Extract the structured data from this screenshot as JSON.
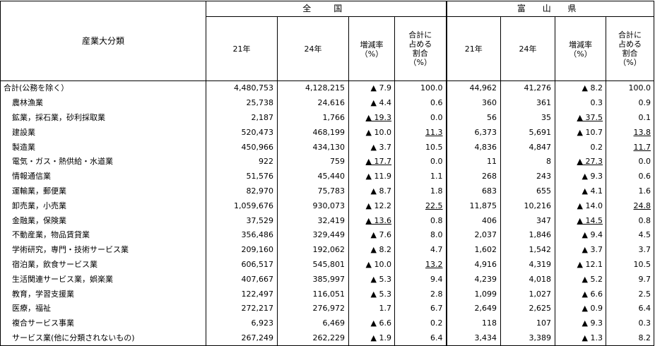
{
  "header": {
    "category_label": "産業大分類",
    "groups": [
      "全　国",
      "富 山 県"
    ],
    "col_year1": "21年",
    "col_year2": "24年",
    "col_rate": "増減率\n（%）",
    "col_share": "合計に\n占める\n割合\n（%）"
  },
  "rows": [
    {
      "name": "合計(公務を除く）",
      "indent": false,
      "n21": "4,480,753",
      "n24": "4,128,215",
      "nr": "▲ 7.9",
      "nr_u": false,
      "ns": "100.0",
      "ns_u": false,
      "t21": "44,962",
      "t24": "41,276",
      "tr": "▲ 8.2",
      "tr_u": false,
      "ts": "100.0",
      "ts_u": false
    },
    {
      "name": "農林漁業",
      "indent": true,
      "n21": "25,738",
      "n24": "24,616",
      "nr": "▲ 4.4",
      "nr_u": false,
      "ns": "0.6",
      "ns_u": false,
      "t21": "360",
      "t24": "361",
      "tr": "0.3",
      "tr_u": false,
      "ts": "0.9",
      "ts_u": false
    },
    {
      "name": "鉱業，採石業，砂利採取業",
      "indent": true,
      "n21": "2,187",
      "n24": "1,766",
      "nr": "▲ 19.3",
      "nr_u": true,
      "ns": "0.0",
      "ns_u": false,
      "t21": "56",
      "t24": "35",
      "tr": "▲ 37.5",
      "tr_u": true,
      "ts": "0.1",
      "ts_u": false
    },
    {
      "name": "建設業",
      "indent": true,
      "n21": "520,473",
      "n24": "468,199",
      "nr": "▲ 10.0",
      "nr_u": false,
      "ns": "11.3",
      "ns_u": true,
      "t21": "6,373",
      "t24": "5,691",
      "tr": "▲ 10.7",
      "tr_u": false,
      "ts": "13.8",
      "ts_u": true
    },
    {
      "name": "製造業",
      "indent": true,
      "n21": "450,966",
      "n24": "434,130",
      "nr": "▲ 3.7",
      "nr_u": false,
      "ns": "10.5",
      "ns_u": false,
      "t21": "4,836",
      "t24": "4,847",
      "tr": "0.2",
      "tr_u": false,
      "ts": "11.7",
      "ts_u": true
    },
    {
      "name": "電気・ガス・熱供給・水道業",
      "indent": true,
      "n21": "922",
      "n24": "759",
      "nr": "▲ 17.7",
      "nr_u": true,
      "ns": "0.0",
      "ns_u": false,
      "t21": "11",
      "t24": "8",
      "tr": "▲ 27.3",
      "tr_u": true,
      "ts": "0.0",
      "ts_u": false
    },
    {
      "name": "情報通信業",
      "indent": true,
      "n21": "51,576",
      "n24": "45,440",
      "nr": "▲ 11.9",
      "nr_u": false,
      "ns": "1.1",
      "ns_u": false,
      "t21": "268",
      "t24": "243",
      "tr": "▲ 9.3",
      "tr_u": false,
      "ts": "0.6",
      "ts_u": false
    },
    {
      "name": "運輸業，郵便業",
      "indent": true,
      "n21": "82,970",
      "n24": "75,783",
      "nr": "▲ 8.7",
      "nr_u": false,
      "ns": "1.8",
      "ns_u": false,
      "t21": "683",
      "t24": "655",
      "tr": "▲ 4.1",
      "tr_u": false,
      "ts": "1.6",
      "ts_u": false
    },
    {
      "name": "卸売業，小売業",
      "indent": true,
      "n21": "1,059,676",
      "n24": "930,073",
      "nr": "▲ 12.2",
      "nr_u": false,
      "ns": "22.5",
      "ns_u": true,
      "t21": "11,875",
      "t24": "10,216",
      "tr": "▲ 14.0",
      "tr_u": false,
      "ts": "24.8",
      "ts_u": true
    },
    {
      "name": "金融業，保険業",
      "indent": true,
      "n21": "37,529",
      "n24": "32,419",
      "nr": "▲ 13.6",
      "nr_u": true,
      "ns": "0.8",
      "ns_u": false,
      "t21": "406",
      "t24": "347",
      "tr": "▲ 14.5",
      "tr_u": true,
      "ts": "0.8",
      "ts_u": false
    },
    {
      "name": "不動産業，物品賃貸業",
      "indent": true,
      "n21": "356,486",
      "n24": "329,449",
      "nr": "▲ 7.6",
      "nr_u": false,
      "ns": "8.0",
      "ns_u": false,
      "t21": "2,037",
      "t24": "1,846",
      "tr": "▲ 9.4",
      "tr_u": false,
      "ts": "4.5",
      "ts_u": false
    },
    {
      "name": "学術研究，専門・技術サービス業",
      "indent": true,
      "n21": "209,160",
      "n24": "192,062",
      "nr": "▲ 8.2",
      "nr_u": false,
      "ns": "4.7",
      "ns_u": false,
      "t21": "1,602",
      "t24": "1,542",
      "tr": "▲ 3.7",
      "tr_u": false,
      "ts": "3.7",
      "ts_u": false
    },
    {
      "name": "宿泊業，飲食サービス業",
      "indent": true,
      "n21": "606,517",
      "n24": "545,801",
      "nr": "▲ 10.0",
      "nr_u": false,
      "ns": "13.2",
      "ns_u": true,
      "t21": "4,916",
      "t24": "4,319",
      "tr": "▲ 12.1",
      "tr_u": false,
      "ts": "10.5",
      "ts_u": false
    },
    {
      "name": "生活関連サービス業，娯楽業",
      "indent": true,
      "n21": "407,667",
      "n24": "385,997",
      "nr": "▲ 5.3",
      "nr_u": false,
      "ns": "9.4",
      "ns_u": false,
      "t21": "4,239",
      "t24": "4,018",
      "tr": "▲ 5.2",
      "tr_u": false,
      "ts": "9.7",
      "ts_u": false
    },
    {
      "name": "教育，学習支援業",
      "indent": true,
      "n21": "122,497",
      "n24": "116,051",
      "nr": "▲ 5.3",
      "nr_u": false,
      "ns": "2.8",
      "ns_u": false,
      "t21": "1,099",
      "t24": "1,027",
      "tr": "▲ 6.6",
      "tr_u": false,
      "ts": "2.5",
      "ts_u": false
    },
    {
      "name": "医療，福祉",
      "indent": true,
      "n21": "272,217",
      "n24": "276,972",
      "nr": "1.7",
      "nr_u": false,
      "ns": "6.7",
      "ns_u": false,
      "t21": "2,649",
      "t24": "2,625",
      "tr": "▲ 0.9",
      "tr_u": false,
      "ts": "6.4",
      "ts_u": false
    },
    {
      "name": "複合サービス事業",
      "indent": true,
      "n21": "6,923",
      "n24": "6,469",
      "nr": "▲ 6.6",
      "nr_u": false,
      "ns": "0.2",
      "ns_u": false,
      "t21": "118",
      "t24": "107",
      "tr": "▲ 9.3",
      "tr_u": false,
      "ts": "0.3",
      "ts_u": false
    },
    {
      "name": "サービス業(他に分類されないもの)",
      "indent": true,
      "n21": "267,249",
      "n24": "262,229",
      "nr": "▲ 1.9",
      "nr_u": false,
      "ns": "6.4",
      "ns_u": false,
      "t21": "3,434",
      "t24": "3,389",
      "tr": "▲ 1.3",
      "tr_u": false,
      "ts": "8.2",
      "ts_u": false
    }
  ]
}
